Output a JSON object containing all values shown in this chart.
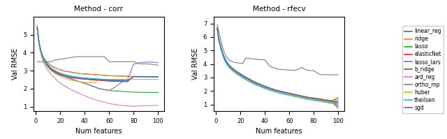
{
  "title1": "Method - corr",
  "title2": "Method - rfecv",
  "xlabel": "Num features",
  "ylabel": "Val RMSE",
  "methods": [
    "linear_reg",
    "ridge",
    "lasso",
    "elasticNet",
    "lasso_lars",
    "b_ridge",
    "ard_reg",
    "ortho_mp",
    "huber",
    "theilsen",
    "sgd"
  ],
  "colors": {
    "linear_reg": "#1f77b4",
    "ridge": "#ff7f0e",
    "lasso": "#2ca02c",
    "elasticNet": "#d62728",
    "lasso_lars": "#9467bd",
    "b_ridge": "#8c564b",
    "ard_reg": "#e377c2",
    "ortho_mp": "#7f7f7f",
    "huber": "#bcbd22",
    "theilsen": "#17becf",
    "sgd": "#4e6db5"
  },
  "x_corr": [
    1,
    2,
    3,
    4,
    5,
    6,
    7,
    8,
    9,
    10,
    12,
    14,
    16,
    18,
    20,
    22,
    24,
    26,
    28,
    30,
    33,
    36,
    40,
    44,
    48,
    52,
    56,
    60,
    65,
    70,
    75,
    80,
    85,
    90,
    95,
    100
  ],
  "corr_data": {
    "linear_reg": [
      5.4,
      4.8,
      4.4,
      4.1,
      3.9,
      3.75,
      3.65,
      3.55,
      3.48,
      3.42,
      3.3,
      3.22,
      3.15,
      3.1,
      3.05,
      3.0,
      2.97,
      2.95,
      2.93,
      2.9,
      2.87,
      2.84,
      2.82,
      2.8,
      2.78,
      2.76,
      2.74,
      2.72,
      2.71,
      2.7,
      2.69,
      2.68,
      2.67,
      2.67,
      2.66,
      2.66
    ],
    "ridge": [
      5.4,
      4.8,
      4.4,
      4.1,
      3.9,
      3.75,
      3.65,
      3.55,
      3.48,
      3.42,
      3.3,
      3.22,
      3.15,
      3.1,
      3.05,
      3.0,
      2.97,
      2.95,
      2.93,
      2.9,
      2.87,
      2.84,
      2.82,
      2.8,
      2.78,
      2.76,
      2.74,
      2.72,
      2.71,
      2.7,
      2.69,
      2.68,
      2.67,
      2.67,
      2.66,
      2.66
    ],
    "lasso": [
      5.38,
      4.78,
      4.35,
      4.05,
      3.82,
      3.65,
      3.5,
      3.4,
      3.3,
      3.22,
      3.08,
      2.98,
      2.9,
      2.83,
      2.77,
      2.72,
      2.67,
      2.62,
      2.57,
      2.52,
      2.45,
      2.38,
      2.3,
      2.2,
      2.1,
      2.0,
      1.95,
      1.9,
      1.87,
      1.85,
      1.83,
      1.81,
      1.8,
      1.79,
      1.79,
      1.79
    ],
    "elasticNet": [
      5.35,
      4.75,
      4.32,
      4.02,
      3.8,
      3.62,
      3.48,
      3.38,
      3.28,
      3.2,
      3.06,
      2.97,
      2.89,
      2.82,
      2.76,
      2.72,
      2.68,
      2.65,
      2.62,
      2.6,
      2.57,
      2.55,
      2.53,
      2.5,
      2.48,
      2.46,
      2.44,
      2.42,
      2.41,
      2.4,
      2.39,
      2.67,
      2.67,
      2.67,
      2.67,
      2.67
    ],
    "lasso_lars": [
      5.38,
      4.78,
      4.35,
      4.05,
      3.82,
      3.65,
      3.5,
      3.4,
      3.3,
      3.22,
      3.08,
      2.98,
      2.9,
      2.83,
      2.77,
      2.72,
      2.67,
      2.62,
      2.57,
      2.52,
      2.45,
      2.38,
      2.3,
      2.2,
      2.1,
      2.0,
      1.95,
      1.9,
      2.1,
      2.35,
      2.5,
      3.35,
      3.45,
      3.48,
      3.47,
      3.45
    ],
    "b_ridge": [
      5.42,
      4.82,
      4.38,
      4.08,
      3.86,
      3.68,
      3.54,
      3.44,
      3.34,
      3.26,
      3.12,
      3.02,
      2.94,
      2.87,
      2.81,
      2.76,
      2.72,
      2.69,
      2.66,
      2.63,
      2.6,
      2.57,
      2.55,
      2.53,
      2.51,
      2.49,
      2.47,
      2.45,
      2.44,
      2.43,
      2.42,
      2.67,
      2.67,
      2.67,
      2.67,
      2.67
    ],
    "ard_reg": [
      5.3,
      4.7,
      4.25,
      3.95,
      3.7,
      3.5,
      3.35,
      3.22,
      3.1,
      3.0,
      2.82,
      2.68,
      2.55,
      2.42,
      2.32,
      2.22,
      2.14,
      2.06,
      1.98,
      1.92,
      1.82,
      1.72,
      1.6,
      1.5,
      1.4,
      1.32,
      1.25,
      1.18,
      1.12,
      1.07,
      1.04,
      1.02,
      1.05,
      1.05,
      1.06,
      1.07
    ],
    "ortho_mp": [
      3.5,
      3.5,
      3.5,
      3.5,
      3.5,
      3.5,
      3.5,
      3.5,
      3.5,
      3.5,
      3.5,
      3.55,
      3.6,
      3.62,
      3.65,
      3.65,
      3.68,
      3.7,
      3.72,
      3.75,
      3.78,
      3.78,
      3.78,
      3.78,
      3.78,
      3.78,
      3.78,
      3.5,
      3.5,
      3.5,
      3.5,
      3.5,
      3.38,
      3.38,
      3.35,
      3.3
    ],
    "huber": [
      5.38,
      4.78,
      4.33,
      4.02,
      3.78,
      3.6,
      3.45,
      3.35,
      3.25,
      3.17,
      3.02,
      2.91,
      2.82,
      2.75,
      2.68,
      2.62,
      2.57,
      2.53,
      2.49,
      2.46,
      2.42,
      2.38,
      2.35,
      2.33,
      2.32,
      2.52,
      2.52,
      2.52,
      2.52,
      2.52,
      2.52,
      2.52,
      2.52,
      2.52,
      2.52,
      2.52
    ],
    "theilsen": [
      5.5,
      4.9,
      4.45,
      4.15,
      3.92,
      3.75,
      3.6,
      3.5,
      3.4,
      3.32,
      3.18,
      3.08,
      3.0,
      2.93,
      2.87,
      2.82,
      2.78,
      2.75,
      2.72,
      2.69,
      2.66,
      2.63,
      2.6,
      2.58,
      2.56,
      2.54,
      2.52,
      2.5,
      2.49,
      2.48,
      2.47,
      2.68,
      2.68,
      2.67,
      2.67,
      2.67
    ],
    "sgd": [
      5.45,
      4.85,
      4.4,
      4.1,
      3.88,
      3.7,
      3.55,
      3.45,
      3.35,
      3.27,
      3.13,
      3.03,
      2.95,
      2.88,
      2.82,
      2.77,
      2.73,
      2.7,
      2.67,
      2.64,
      2.61,
      2.58,
      2.56,
      2.54,
      2.52,
      2.5,
      2.48,
      2.46,
      2.45,
      2.44,
      2.43,
      2.68,
      2.68,
      2.67,
      2.67,
      2.67
    ]
  },
  "x_rfecv": [
    1,
    2,
    3,
    4,
    5,
    6,
    7,
    8,
    9,
    10,
    12,
    14,
    16,
    18,
    20,
    22,
    24,
    26,
    28,
    30,
    33,
    36,
    40,
    44,
    48,
    52,
    56,
    60,
    65,
    70,
    75,
    80,
    85,
    90,
    95,
    100
  ],
  "rfecv_data": {
    "linear_reg": [
      6.7,
      6.0,
      5.6,
      5.25,
      4.95,
      4.68,
      4.45,
      4.28,
      4.12,
      4.0,
      3.8,
      3.65,
      3.5,
      3.38,
      3.28,
      3.15,
      3.05,
      2.95,
      2.85,
      2.75,
      2.62,
      2.5,
      2.35,
      2.22,
      2.1,
      2.0,
      1.9,
      1.82,
      1.72,
      1.62,
      1.52,
      1.45,
      1.38,
      1.3,
      1.22,
      1.15
    ],
    "ridge": [
      6.65,
      5.95,
      5.55,
      5.2,
      4.9,
      4.63,
      4.4,
      4.23,
      4.07,
      3.95,
      3.75,
      3.6,
      3.45,
      3.33,
      3.22,
      3.1,
      3.0,
      2.9,
      2.8,
      2.7,
      2.58,
      2.47,
      2.32,
      2.2,
      2.08,
      1.98,
      1.9,
      1.82,
      1.73,
      1.63,
      1.54,
      1.48,
      1.42,
      1.35,
      1.29,
      1.5
    ],
    "lasso": [
      6.6,
      5.9,
      5.5,
      5.15,
      4.85,
      4.58,
      4.35,
      4.18,
      4.02,
      3.9,
      3.7,
      3.55,
      3.4,
      3.28,
      3.17,
      3.05,
      2.95,
      2.85,
      2.75,
      2.65,
      2.52,
      2.42,
      2.27,
      2.15,
      2.03,
      1.93,
      1.85,
      1.77,
      1.67,
      1.57,
      1.47,
      1.4,
      1.33,
      1.25,
      1.17,
      0.85
    ],
    "elasticNet": [
      6.62,
      5.92,
      5.52,
      5.17,
      4.87,
      4.6,
      4.37,
      4.2,
      4.04,
      3.92,
      3.72,
      3.57,
      3.42,
      3.3,
      3.19,
      3.07,
      2.97,
      2.87,
      2.77,
      2.67,
      2.54,
      2.44,
      2.29,
      2.17,
      2.05,
      1.95,
      1.87,
      1.79,
      1.69,
      1.59,
      1.49,
      1.42,
      1.35,
      1.27,
      1.19,
      1.02
    ],
    "lasso_lars": [
      6.6,
      5.9,
      5.5,
      5.15,
      4.85,
      4.58,
      4.35,
      4.18,
      4.02,
      3.9,
      3.7,
      3.55,
      3.4,
      3.28,
      3.17,
      3.05,
      2.95,
      2.85,
      2.75,
      2.65,
      2.52,
      2.42,
      2.27,
      2.15,
      2.03,
      1.93,
      1.85,
      1.77,
      1.67,
      1.57,
      1.47,
      1.4,
      1.33,
      1.25,
      1.17,
      0.72
    ],
    "b_ridge": [
      6.68,
      5.98,
      5.58,
      5.23,
      4.93,
      4.66,
      4.43,
      4.26,
      4.1,
      3.98,
      3.78,
      3.63,
      3.48,
      3.36,
      3.25,
      3.13,
      3.03,
      2.93,
      2.83,
      2.73,
      2.6,
      2.49,
      2.34,
      2.22,
      2.1,
      2.0,
      1.92,
      1.84,
      1.74,
      1.64,
      1.54,
      1.47,
      1.4,
      1.32,
      1.24,
      1.5
    ],
    "ard_reg": [
      6.63,
      5.93,
      5.53,
      5.18,
      4.88,
      4.61,
      4.38,
      4.21,
      4.05,
      3.93,
      3.73,
      3.58,
      3.43,
      3.31,
      3.2,
      3.08,
      2.98,
      2.88,
      2.78,
      2.68,
      2.55,
      2.45,
      2.3,
      2.18,
      2.06,
      1.96,
      1.88,
      1.8,
      1.7,
      1.6,
      1.5,
      1.43,
      1.36,
      1.28,
      1.2,
      0.9
    ],
    "ortho_mp": [
      6.9,
      6.5,
      6.1,
      5.7,
      5.35,
      5.05,
      4.8,
      4.6,
      4.45,
      4.35,
      4.22,
      4.15,
      4.1,
      4.07,
      4.05,
      4.05,
      4.42,
      4.42,
      4.4,
      4.38,
      4.35,
      4.32,
      4.3,
      3.82,
      3.7,
      3.6,
      3.58,
      3.55,
      3.52,
      3.72,
      3.52,
      3.5,
      3.22,
      3.2,
      3.2,
      3.2
    ],
    "huber": [
      6.55,
      5.85,
      5.45,
      5.1,
      4.8,
      4.53,
      4.3,
      4.13,
      3.97,
      3.85,
      3.65,
      3.5,
      3.35,
      3.23,
      3.12,
      3.0,
      2.9,
      2.8,
      2.7,
      2.6,
      2.47,
      2.37,
      2.22,
      2.1,
      1.98,
      1.88,
      1.8,
      1.72,
      1.62,
      1.52,
      1.42,
      1.35,
      1.28,
      1.2,
      1.12,
      1.5
    ],
    "theilsen": [
      6.5,
      5.8,
      5.4,
      5.05,
      4.75,
      4.48,
      4.25,
      4.08,
      3.92,
      3.8,
      3.6,
      3.45,
      3.3,
      3.18,
      3.07,
      2.95,
      2.85,
      2.75,
      2.65,
      2.55,
      2.42,
      2.32,
      2.17,
      2.05,
      1.93,
      1.83,
      1.75,
      1.67,
      1.57,
      1.47,
      1.37,
      1.3,
      1.23,
      1.15,
      1.07,
      1.35
    ],
    "sgd": [
      6.65,
      5.95,
      5.55,
      5.2,
      4.9,
      4.63,
      4.4,
      4.23,
      4.07,
      3.95,
      3.75,
      3.6,
      3.45,
      3.33,
      3.22,
      3.1,
      3.0,
      2.9,
      2.8,
      2.7,
      2.57,
      2.47,
      2.32,
      2.2,
      2.08,
      1.98,
      1.9,
      1.82,
      1.72,
      1.62,
      1.52,
      1.45,
      1.38,
      1.3,
      1.22,
      1.2
    ]
  },
  "ylim_corr": [
    0.75,
    6.0
  ],
  "ylim_rfecv": [
    0.5,
    7.5
  ],
  "yticks_corr": [
    1,
    2,
    3,
    4,
    5
  ],
  "yticks_rfecv": [
    1,
    2,
    3,
    4,
    5,
    6,
    7
  ],
  "xlim": [
    -2,
    105
  ],
  "xticks": [
    0,
    20,
    40,
    60,
    80,
    100
  ]
}
